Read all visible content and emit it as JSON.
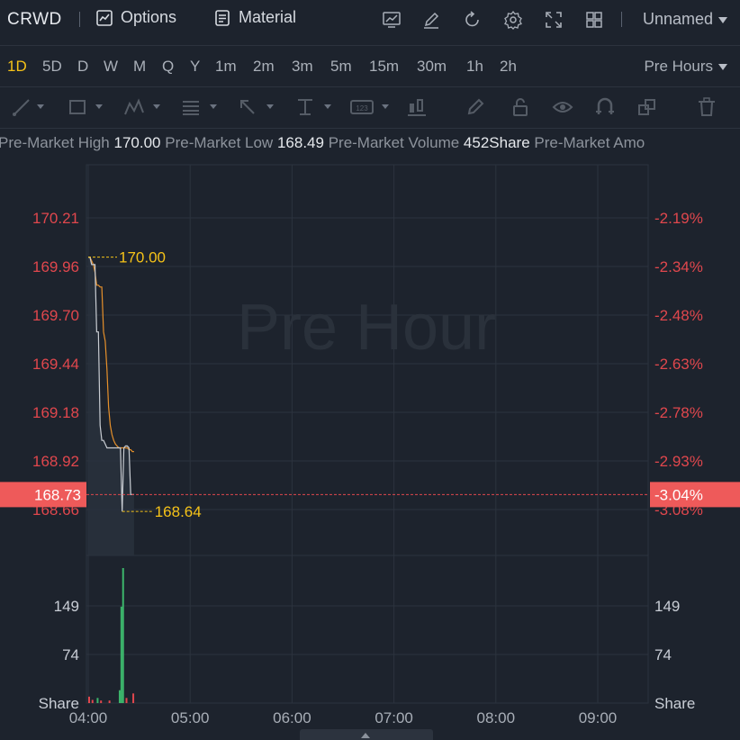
{
  "toolbar": {
    "ticker": "CRWD",
    "options_label": "Options",
    "material_label": "Material",
    "layout_name": "Unnamed",
    "icons": [
      "chart-indicator-icon",
      "drawing-pen-icon",
      "refresh-icon",
      "settings-gear-icon",
      "fullscreen-icon",
      "grid-layout-icon"
    ]
  },
  "periods": {
    "items": [
      "1D",
      "5D",
      "D",
      "W",
      "M",
      "Q",
      "Y",
      "1m",
      "2m",
      "3m",
      "5m",
      "15m",
      "30m",
      "1h",
      "2h"
    ],
    "active": "1D",
    "session_label": "Pre Hours"
  },
  "drawing_tools": [
    "line-tool-icon",
    "rectangle-tool-icon",
    "pattern-tool-icon",
    "fibonacci-tool-icon",
    "arrow-tool-icon",
    "price-range-tool-icon",
    "text-label-tool-icon",
    "candle-tool-icon",
    "brush-tool-icon",
    "lock-icon",
    "eye-icon",
    "magnet-icon",
    "layers-icon",
    "trash-icon"
  ],
  "info_bar": {
    "high_label": "Pre-Market High",
    "high_value": "170.00",
    "low_label": "Pre-Market Low",
    "low_value": "168.49",
    "volume_label": "Pre-Market Volume",
    "volume_value": "452Share",
    "amount_label": "Pre-Market Amo"
  },
  "chart_data": {
    "type": "line",
    "watermark": "Pre Hour",
    "x_ticks": [
      "04:00",
      "05:00",
      "06:00",
      "07:00",
      "08:00",
      "09:00"
    ],
    "price_ticks": [
      "170.21",
      "169.96",
      "169.70",
      "169.44",
      "169.18",
      "168.92",
      "168.66"
    ],
    "percent_ticks": [
      "-2.19%",
      "-2.34%",
      "-2.48%",
      "-2.63%",
      "-2.78%",
      "-2.93%",
      "-3.08%"
    ],
    "current_price": "168.73",
    "current_percent": "-3.04%",
    "high_marker": "170.00",
    "low_marker": "168.64",
    "volume_ticks": [
      "149",
      "74"
    ],
    "volume_unit": "Share",
    "price_series": {
      "name": "",
      "x": [
        "04:00",
        "04:01",
        "04:02",
        "04:03",
        "04:04",
        "04:05",
        "04:06",
        "04:07",
        "04:08",
        "04:09",
        "04:10",
        "04:11",
        "04:12",
        "04:13",
        "04:14",
        "04:15",
        "04:16",
        "04:17",
        "04:18",
        "04:19",
        "04:20",
        "04:21",
        "04:22",
        "04:23",
        "04:24",
        "04:25",
        "04:26",
        "04:27"
      ],
      "values": [
        170.0,
        170.0,
        169.96,
        169.96,
        169.96,
        169.6,
        169.6,
        169.1,
        169.02,
        169.02,
        169.0,
        168.98,
        168.98,
        168.98,
        168.98,
        168.98,
        168.98,
        168.98,
        168.98,
        168.98,
        168.64,
        168.98,
        168.99,
        168.99,
        168.98,
        168.73,
        168.73,
        168.73
      ],
      "avg_values": [
        170.0,
        170.0,
        169.98,
        169.96,
        169.92,
        169.85,
        169.85,
        169.84,
        169.84,
        169.6,
        169.55,
        169.4,
        169.2,
        169.1,
        169.05,
        169.02,
        169.0,
        168.99,
        168.98,
        168.98,
        168.98,
        168.98,
        168.98,
        168.98,
        168.97,
        168.97,
        168.96,
        168.96
      ]
    },
    "volume_series": {
      "x": [
        "04:00",
        "04:02",
        "04:05",
        "04:07",
        "04:12",
        "04:18",
        "04:19",
        "04:20",
        "04:22",
        "04:26"
      ],
      "values": [
        10,
        5,
        8,
        4,
        4,
        20,
        150,
        210,
        8,
        15
      ],
      "up": [
        false,
        false,
        true,
        false,
        false,
        true,
        true,
        true,
        false,
        false
      ]
    },
    "colors": {
      "background": "#1d232d",
      "grid": "#2c333e",
      "price_line": "#c9cdd3",
      "avg_line": "#e6902b",
      "up": "#3cb56b",
      "down": "#e0474d",
      "marker": "#f5c218",
      "price_axis": "#e0474d"
    }
  }
}
